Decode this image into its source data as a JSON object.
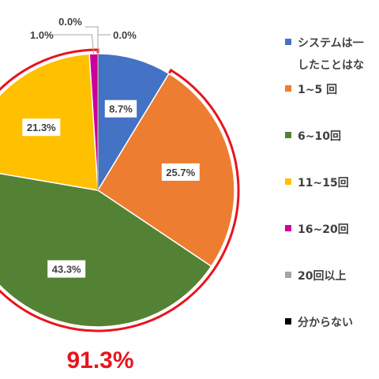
{
  "chart_data": {
    "type": "pie",
    "categories": [
      "システムは一度も利用したことはない",
      "1~5 回",
      "6~10回",
      "11~15回",
      "16~20回",
      "20回以上",
      "分からない"
    ],
    "legend_lines": [
      [
        "システムは一",
        "したことはな"
      ],
      [
        "1~5 回"
      ],
      [
        "6~10回"
      ],
      [
        "11~15回"
      ],
      [
        "16~20回"
      ],
      [
        "20回以上"
      ],
      [
        "分からない"
      ]
    ],
    "values": [
      8.7,
      25.7,
      43.3,
      21.3,
      1.0,
      0.0,
      0.0
    ],
    "labels": [
      "8.7%",
      "25.7%",
      "43.3%",
      "21.3%",
      "1.0%",
      "0.0%",
      "0.0%"
    ],
    "colors": [
      "#4472c4",
      "#ed7d31",
      "#548235",
      "#ffc000",
      "#cc0099",
      "#a5a5a5",
      "#000000"
    ],
    "legend_position": "right",
    "highlight": {
      "label": "91.3%",
      "color": "#e8141e",
      "covers_categories": [
        "1~5 回",
        "6~10回",
        "11~15回",
        "16~20回",
        "20回以上"
      ]
    }
  }
}
